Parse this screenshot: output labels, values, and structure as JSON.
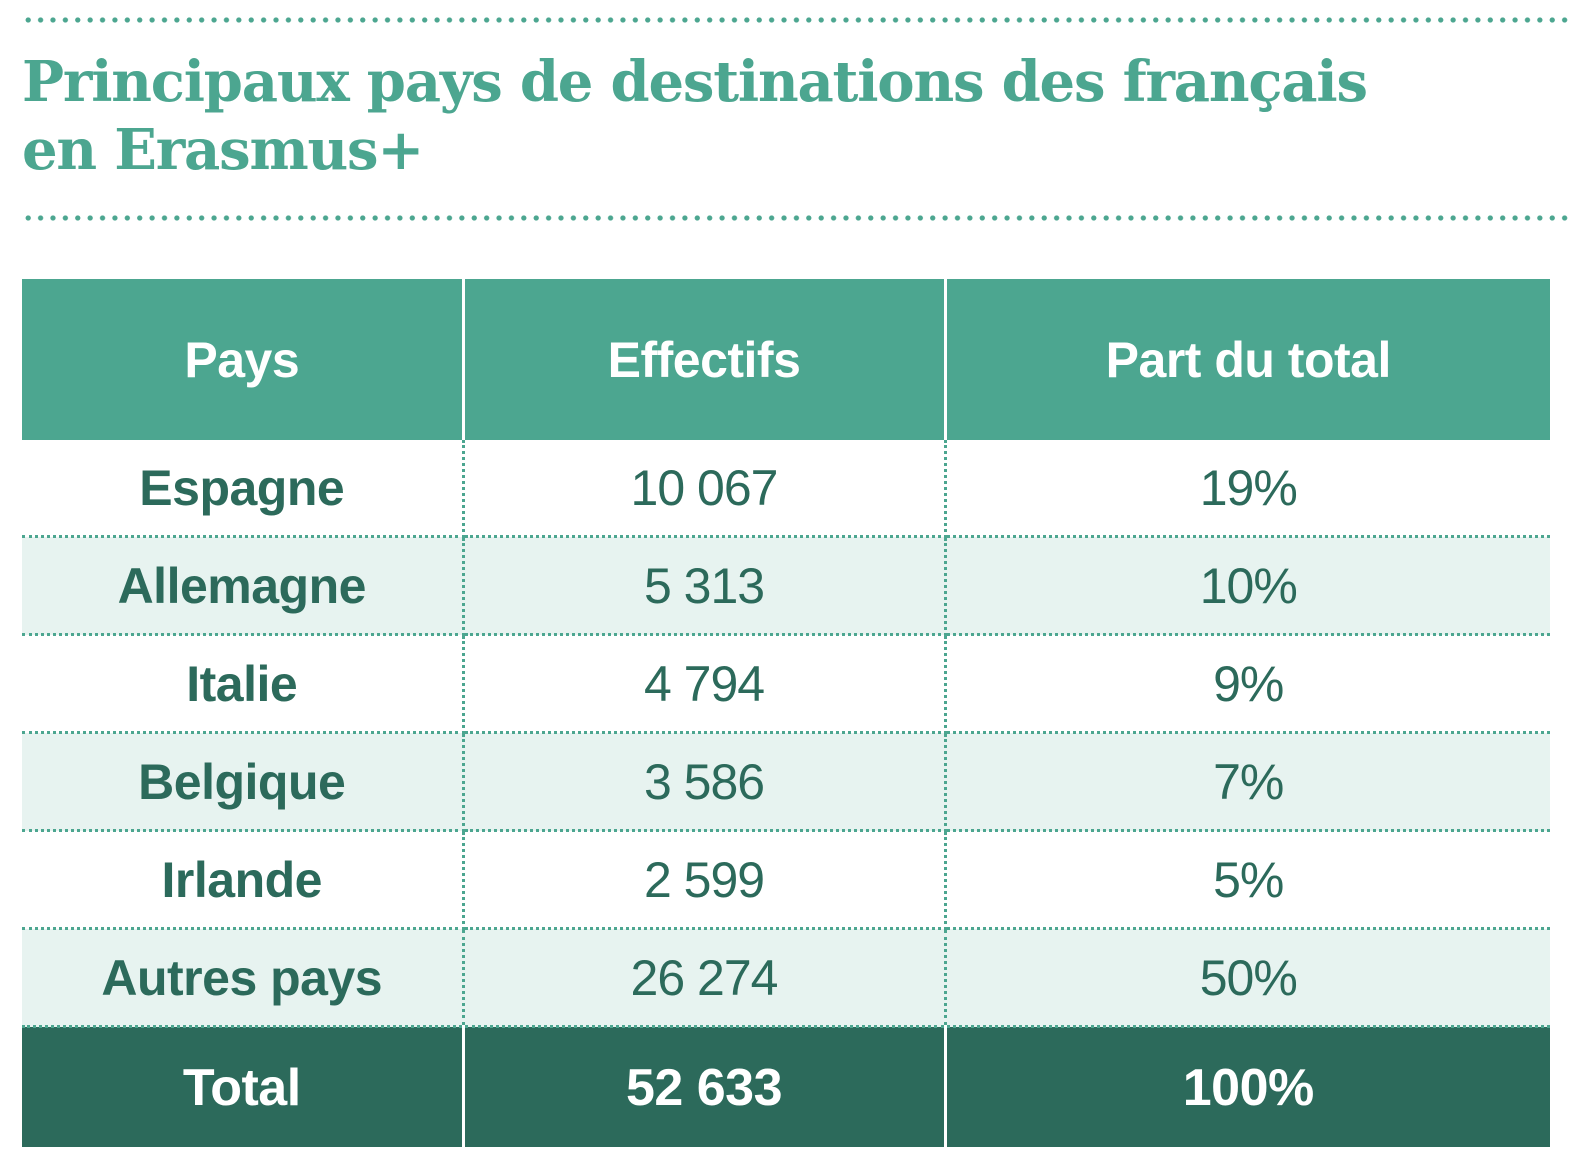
{
  "colors": {
    "accent": "#4ca690",
    "dark": "#2c6a5b",
    "light": "#e7f3f0"
  },
  "title_line1": "Principaux pays de destinations des français",
  "title_line2": "en Erasmus+",
  "chart_data": {
    "type": "table",
    "title": "Principaux pays de destinations des français en Erasmus+",
    "columns": [
      "Pays",
      "Effectifs",
      "Part du total"
    ],
    "rows": [
      {
        "pays": "Espagne",
        "effectifs": "10 067",
        "part": "19%"
      },
      {
        "pays": "Allemagne",
        "effectifs": "5 313",
        "part": "10%"
      },
      {
        "pays": "Italie",
        "effectifs": "4 794",
        "part": "9%"
      },
      {
        "pays": "Belgique",
        "effectifs": "3 586",
        "part": "7%"
      },
      {
        "pays": "Irlande",
        "effectifs": "2 599",
        "part": "5%"
      },
      {
        "pays": "Autres pays",
        "effectifs": "26 274",
        "part": "50%"
      }
    ],
    "total": {
      "pays": "Total",
      "effectifs": "52 633",
      "part": "100%"
    }
  }
}
